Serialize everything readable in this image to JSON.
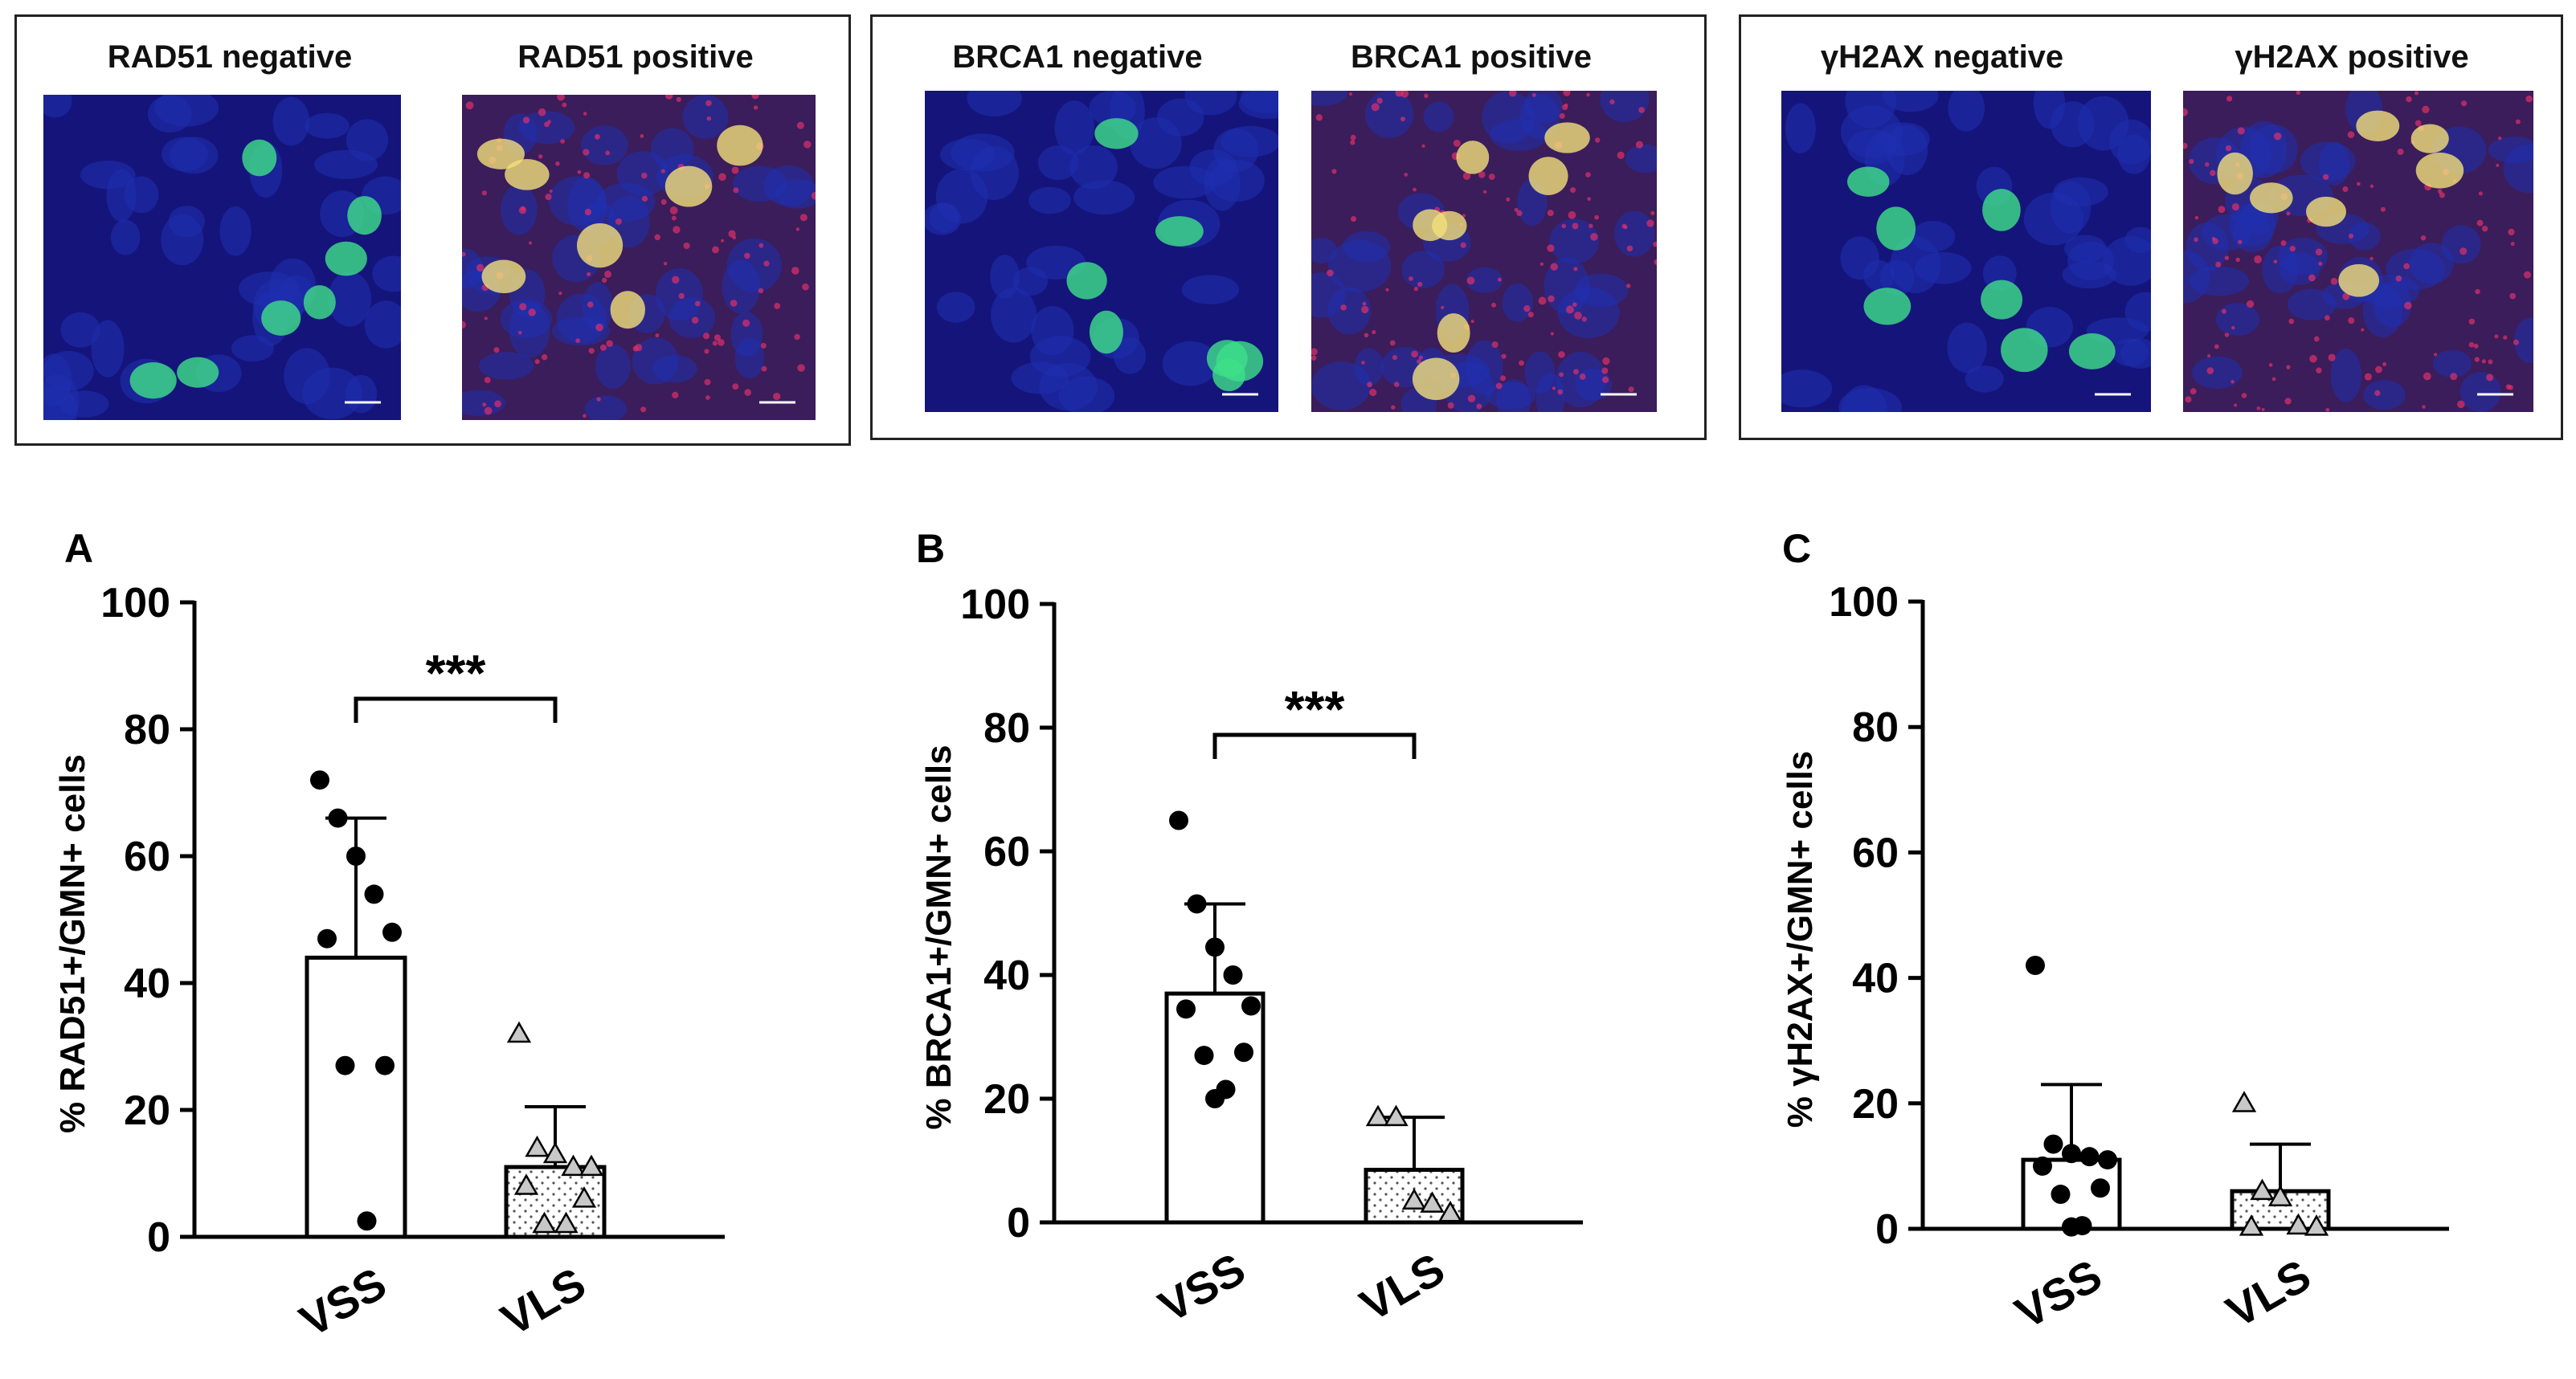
{
  "micrographs": [
    {
      "negative_label": "RAD51 negative",
      "positive_label": "RAD51 positive"
    },
    {
      "negative_label": "BRCA1 negative",
      "positive_label": "BRCA1 positive"
    },
    {
      "negative_label": "γH2AX negative",
      "positive_label": "γH2AX positive"
    }
  ],
  "colors": {
    "nucleus_blue": "#1f2fb0",
    "geminin_green": "#3fe08a",
    "marker_red": "#e0306a",
    "overlap_yellow": "#f2e07a"
  },
  "chart_data": [
    {
      "type": "bar",
      "panel_letter": "A",
      "ylabel": "% RAD51+/GMN+ cells",
      "ylim": [
        0,
        100
      ],
      "yticks": [
        0,
        20,
        40,
        60,
        80,
        100
      ],
      "categories": [
        "VSS",
        "VLS"
      ],
      "values": [
        44,
        11
      ],
      "sd": [
        22,
        9.5
      ],
      "points": [
        [
          72,
          66,
          60,
          54,
          48,
          47,
          27,
          27,
          2.5
        ],
        [
          32,
          14,
          13,
          11,
          11,
          8,
          6,
          2,
          2
        ]
      ],
      "significance": "***"
    },
    {
      "type": "bar",
      "panel_letter": "B",
      "ylabel": "% BRCA1+/GMN+ cells",
      "ylim": [
        0,
        100
      ],
      "yticks": [
        0,
        20,
        40,
        60,
        80,
        100
      ],
      "categories": [
        "VSS",
        "VLS"
      ],
      "values": [
        37,
        8.5
      ],
      "sd": [
        14.5,
        8.5
      ],
      "points": [
        [
          65,
          51.5,
          44.5,
          40,
          35,
          34.5,
          27.5,
          27,
          21.5,
          20
        ],
        [
          17,
          17,
          3.5,
          3,
          1.5
        ]
      ],
      "significance": "***"
    },
    {
      "type": "bar",
      "panel_letter": "C",
      "ylabel": "% γH2AX+/GMN+ cells",
      "ylim": [
        0,
        100
      ],
      "yticks": [
        0,
        20,
        40,
        60,
        80,
        100
      ],
      "categories": [
        "VSS",
        "VLS"
      ],
      "values": [
        11,
        6
      ],
      "sd": [
        12,
        7.5
      ],
      "points": [
        [
          42,
          13.5,
          12,
          11.5,
          11,
          10,
          6.5,
          5.5,
          0.5,
          0.3
        ],
        [
          20,
          6,
          5,
          0.5,
          0.3,
          0.3
        ]
      ],
      "significance": ""
    }
  ]
}
